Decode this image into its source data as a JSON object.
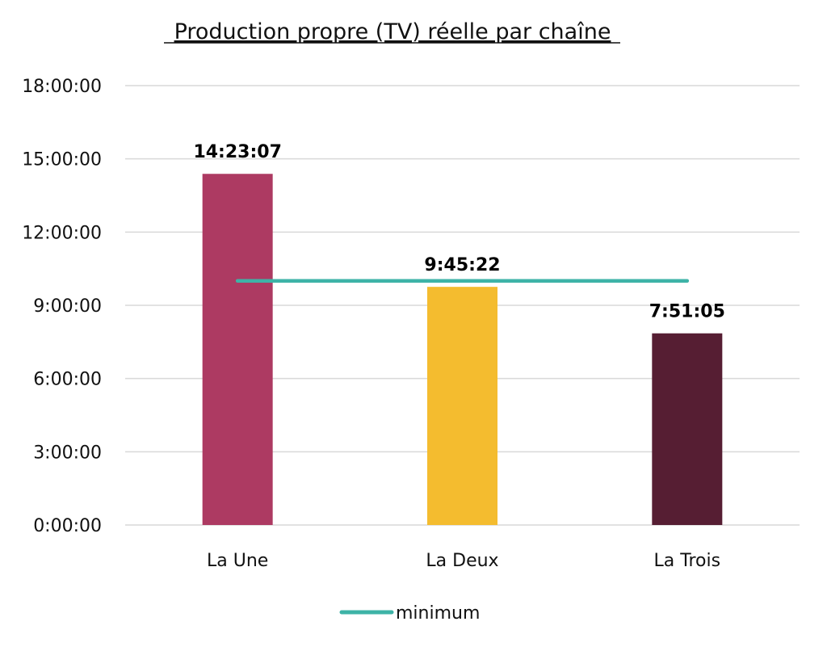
{
  "chart_data": {
    "type": "bar",
    "title": "Production propre (TV) réelle par chaîne",
    "categories": [
      "La Une",
      "La Deux",
      "La Trois"
    ],
    "values": [
      14.385277,
      9.756111,
      7.851389
    ],
    "data_labels": [
      "14:23:07",
      "9:45:22",
      "7:51:05"
    ],
    "bar_colors": [
      "#AD3A62",
      "#F4BC2F",
      "#561E33"
    ],
    "y_ticks": [
      {
        "value": 0,
        "label": "0:00:00"
      },
      {
        "value": 3,
        "label": "3:00:00"
      },
      {
        "value": 6,
        "label": "6:00:00"
      },
      {
        "value": 9,
        "label": "9:00:00"
      },
      {
        "value": 12,
        "label": "12:00:00"
      },
      {
        "value": 15,
        "label": "15:00:00"
      },
      {
        "value": 18,
        "label": "18:00:00"
      }
    ],
    "ylim": [
      0,
      18
    ],
    "grid": true,
    "reference_line": {
      "name": "minimum",
      "value": 10,
      "color": "#3EB3A7"
    },
    "legend": {
      "placement": "bottom",
      "entries": [
        "minimum"
      ]
    }
  }
}
